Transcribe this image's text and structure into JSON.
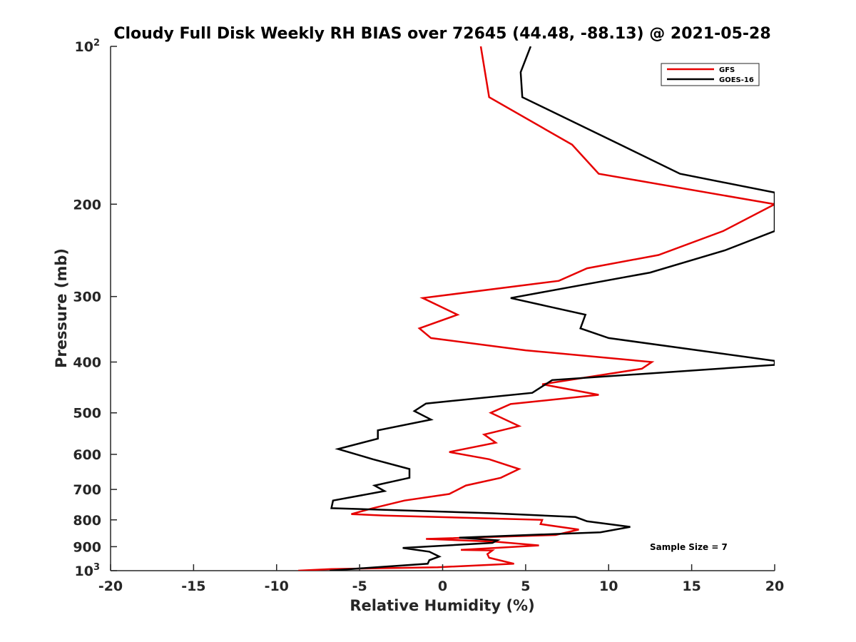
{
  "chart_data": {
    "type": "line",
    "title": "Cloudy Full Disk Weekly RH BIAS over 72645 (44.48, -88.13) @ 2021-05-28",
    "xlabel": "Relative Humidity (%)",
    "ylabel": "Pressure (mb)",
    "xlim": [
      -20,
      20
    ],
    "ylim": [
      100,
      1000
    ],
    "yscale": "log",
    "y_reversed": true,
    "grid": false,
    "legend_position": "top-right",
    "x_ticks": [
      "-20",
      "-15",
      "-10",
      "-5",
      "0",
      "5",
      "10",
      "15",
      "20"
    ],
    "y_ticks": [
      {
        "value": 100,
        "base": "10",
        "exp": "2"
      },
      {
        "value": 200,
        "label": "200"
      },
      {
        "value": 300,
        "label": "300"
      },
      {
        "value": 400,
        "label": "400"
      },
      {
        "value": 500,
        "label": "500"
      },
      {
        "value": 600,
        "label": "600"
      },
      {
        "value": 700,
        "label": "700"
      },
      {
        "value": 800,
        "label": "800"
      },
      {
        "value": 900,
        "label": "900"
      },
      {
        "value": 1000,
        "base": "10",
        "exp": "3"
      }
    ],
    "annotation": "Sample Size = 7",
    "series": [
      {
        "name": "GFS",
        "color": "#e60000",
        "points": [
          [
            2.3,
            100
          ],
          [
            2.8,
            125
          ],
          [
            7.8,
            154
          ],
          [
            9.4,
            175
          ],
          [
            20,
            200
          ],
          [
            16.9,
            225
          ],
          [
            13.0,
            250
          ],
          [
            8.7,
            265
          ],
          [
            7.0,
            280
          ],
          [
            -1.2,
            302
          ],
          [
            0.9,
            325
          ],
          [
            -1.4,
            345
          ],
          [
            -0.7,
            360
          ],
          [
            5.0,
            380
          ],
          [
            12.6,
            400
          ],
          [
            12.0,
            412
          ],
          [
            6.0,
            441
          ],
          [
            9.4,
            462
          ],
          [
            4.1,
            481
          ],
          [
            2.9,
            500
          ],
          [
            4.6,
            530
          ],
          [
            2.5,
            550
          ],
          [
            3.2,
            570
          ],
          [
            0.4,
            594
          ],
          [
            2.8,
            613
          ],
          [
            4.6,
            640
          ],
          [
            3.5,
            665
          ],
          [
            1.4,
            688
          ],
          [
            0.4,
            714
          ],
          [
            -2.3,
            735
          ],
          [
            -4.2,
            760
          ],
          [
            -5.5,
            780
          ],
          [
            -3.5,
            785
          ],
          [
            6.0,
            800
          ],
          [
            5.9,
            815
          ],
          [
            8.2,
            835
          ],
          [
            6.8,
            855
          ],
          [
            -1.0,
            870
          ],
          [
            3.1,
            880
          ],
          [
            5.8,
            895
          ],
          [
            1.1,
            913
          ],
          [
            3.0,
            915
          ],
          [
            2.7,
            930
          ],
          [
            2.8,
            945
          ],
          [
            4.3,
            970
          ],
          [
            -0.3,
            985
          ],
          [
            -6.7,
            993
          ],
          [
            -8.7,
            1000
          ]
        ]
      },
      {
        "name": "GOES-16",
        "color": "#000000",
        "points": [
          [
            5.3,
            100
          ],
          [
            4.7,
            112
          ],
          [
            4.8,
            125
          ],
          [
            10.7,
            154
          ],
          [
            14.3,
            175
          ],
          [
            20,
            190
          ],
          [
            20,
            225
          ],
          [
            17.0,
            245
          ],
          [
            12.5,
            270
          ],
          [
            4.1,
            302
          ],
          [
            8.6,
            325
          ],
          [
            8.3,
            345
          ],
          [
            10.0,
            360
          ],
          [
            20,
            398
          ],
          [
            20,
            405
          ],
          [
            6.6,
            433
          ],
          [
            5.4,
            458
          ],
          [
            -1.0,
            480
          ],
          [
            -1.7,
            496
          ],
          [
            -0.7,
            515
          ],
          [
            -3.9,
            540
          ],
          [
            -3.9,
            560
          ],
          [
            -6.3,
            586
          ],
          [
            -4.2,
            613
          ],
          [
            -2.0,
            640
          ],
          [
            -2.0,
            665
          ],
          [
            -4.1,
            688
          ],
          [
            -3.5,
            705
          ],
          [
            -6.6,
            735
          ],
          [
            -6.7,
            760
          ],
          [
            3.0,
            777
          ],
          [
            8.0,
            790
          ],
          [
            8.7,
            805
          ],
          [
            11.3,
            825
          ],
          [
            9.5,
            845
          ],
          [
            1.0,
            865
          ],
          [
            3.3,
            875
          ],
          [
            3.0,
            885
          ],
          [
            -2.4,
            905
          ],
          [
            -0.8,
            920
          ],
          [
            -0.2,
            940
          ],
          [
            -0.8,
            955
          ],
          [
            -0.9,
            970
          ],
          [
            -4.0,
            985
          ],
          [
            -6.8,
            1000
          ]
        ]
      }
    ]
  }
}
